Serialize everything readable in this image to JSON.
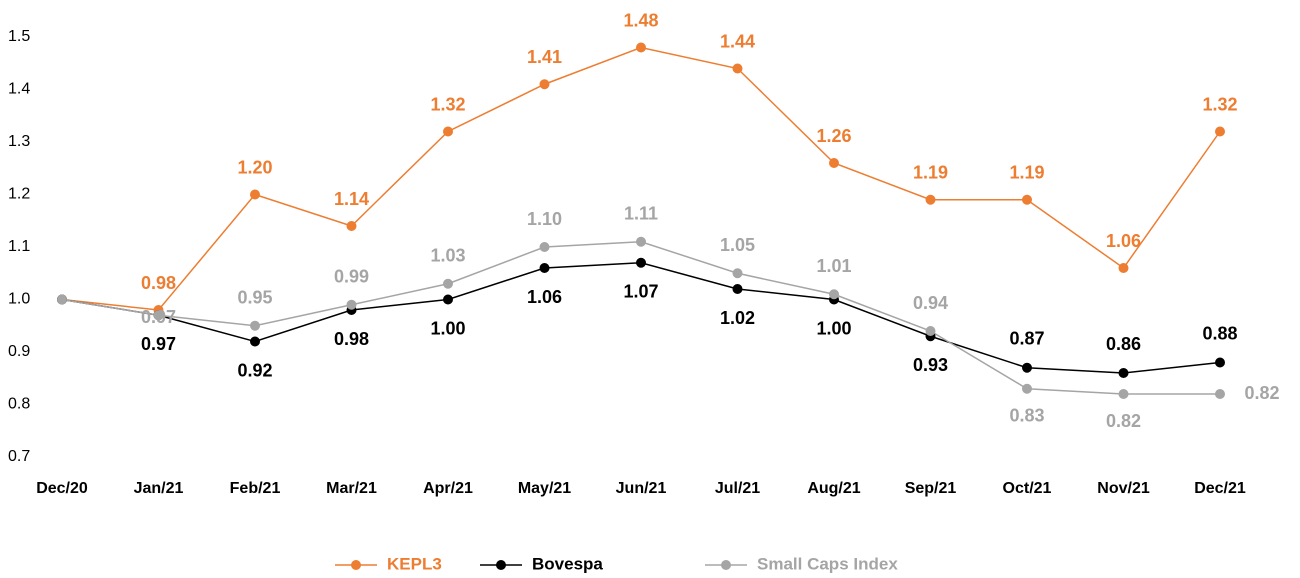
{
  "chart_data": {
    "type": "line",
    "categories": [
      "Dec/20",
      "Jan/21",
      "Feb/21",
      "Mar/21",
      "Apr/21",
      "May/21",
      "Jun/21",
      "Jul/21",
      "Aug/21",
      "Sep/21",
      "Oct/21",
      "Nov/21",
      "Dec/21"
    ],
    "ylim": [
      0.7,
      1.5
    ],
    "yticks": [
      0.7,
      0.8,
      0.9,
      {
        "value": 1,
        "label": "1.0"
      },
      1.1,
      1.2,
      1.3,
      1.4,
      1.5
    ],
    "grid": false,
    "legend": "bottom",
    "series": [
      {
        "name": "KEPL3",
        "color": "#ED7D31",
        "values": [
          1,
          0.98,
          1.2,
          1.14,
          1.32,
          1.41,
          1.48,
          1.44,
          1.26,
          1.19,
          1.19,
          1.06,
          1.32
        ],
        "value_labels": [
          null,
          "0.98",
          "1.20",
          "1.14",
          "1.32",
          "1.41",
          "1.48",
          "1.44",
          "1.26",
          "1.19",
          "1.19",
          "1.06",
          "1.32"
        ]
      },
      {
        "name": "Bovespa",
        "color": "#000000",
        "values": [
          1,
          0.97,
          0.92,
          0.98,
          1,
          1.06,
          1.07,
          1.02,
          1,
          0.93,
          0.87,
          0.86,
          0.88
        ],
        "value_labels": [
          null,
          "0.97",
          "0.92",
          "0.98",
          "1.00",
          "1.06",
          "1.07",
          "1.02",
          "1.00",
          "0.93",
          "0.87",
          "0.86",
          "0.88"
        ]
      },
      {
        "name": "Small Caps Index",
        "color": "#A5A5A5",
        "values": [
          1,
          0.97,
          0.95,
          0.99,
          1.03,
          1.1,
          1.11,
          1.05,
          1.01,
          0.94,
          0.83,
          0.82,
          0.82
        ],
        "value_labels": [
          null,
          "0.97",
          "0.95",
          "0.99",
          "1.03",
          "1.10",
          "1.11",
          "1.05",
          "1.01",
          "0.94",
          "0.83",
          "0.82",
          "0.82"
        ]
      }
    ]
  }
}
